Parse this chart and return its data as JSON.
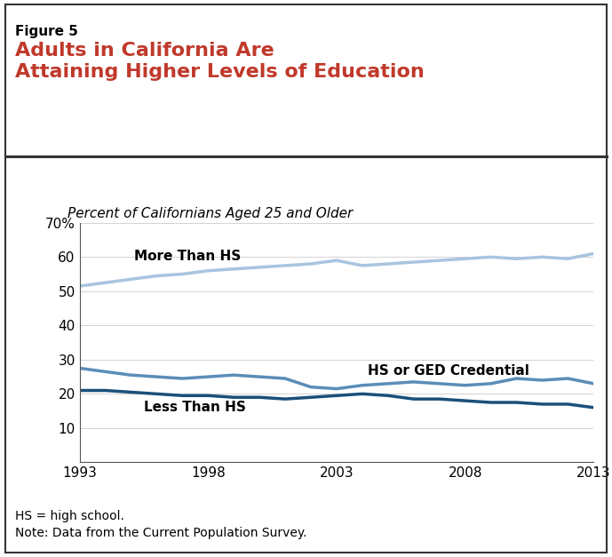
{
  "figure_label": "Figure 5",
  "title_line1": "Adults in California Are",
  "title_line2": "Attaining Higher Levels of Education",
  "subtitle": "Percent of Californians Aged 25 and Older",
  "title_color": "#C0392B",
  "figure_label_color": "#000000",
  "background_color": "#FFFFFF",
  "footer_line1": "HS = high school.",
  "footer_line2": "Note: Data from the Current Population Survey.",
  "years": [
    1993,
    1994,
    1995,
    1996,
    1997,
    1998,
    1999,
    2000,
    2001,
    2002,
    2003,
    2004,
    2005,
    2006,
    2007,
    2008,
    2009,
    2010,
    2011,
    2012,
    2013
  ],
  "more_than_hs": [
    51.5,
    52.5,
    53.5,
    54.5,
    55.0,
    56.0,
    56.5,
    57.0,
    57.5,
    58.0,
    59.0,
    57.5,
    58.0,
    58.5,
    59.0,
    59.5,
    60.0,
    59.5,
    60.0,
    59.5,
    61.0
  ],
  "hs_or_ged": [
    27.5,
    26.5,
    25.5,
    25.0,
    24.5,
    25.0,
    25.5,
    25.0,
    24.5,
    22.0,
    21.5,
    22.5,
    23.0,
    23.5,
    23.0,
    22.5,
    23.0,
    24.5,
    24.0,
    24.5,
    23.0
  ],
  "less_than_hs": [
    21.0,
    21.0,
    20.5,
    20.0,
    19.5,
    19.5,
    19.0,
    19.0,
    18.5,
    19.0,
    19.5,
    20.0,
    19.5,
    18.5,
    18.5,
    18.0,
    17.5,
    17.5,
    17.0,
    17.0,
    16.0
  ],
  "color_more_than_hs": "#A8C4E0",
  "color_hs_or_ged": "#5B8DB8",
  "color_less_than_hs": "#1A4F7A",
  "ylim": [
    0,
    70
  ],
  "yticks": [
    10,
    20,
    30,
    40,
    50,
    60,
    70
  ],
  "xticks": [
    1993,
    1998,
    2003,
    2008,
    2013
  ],
  "linewidth": 2.5
}
